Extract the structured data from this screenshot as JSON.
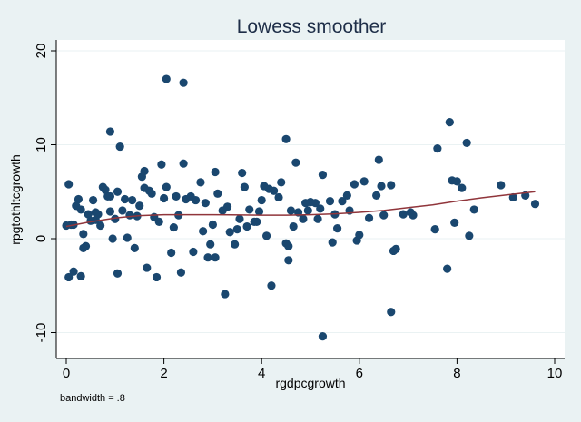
{
  "chart_data": {
    "type": "scatter",
    "title": "Lowess smoother",
    "xlabel": "rgdpcgrowth",
    "ylabel": "rpgtothltcgrowth",
    "note": "bandwidth = .8",
    "xlim": [
      -0.2,
      10.2
    ],
    "ylim": [
      -11.5,
      21
    ],
    "xticks": [
      0,
      2,
      4,
      6,
      8,
      10
    ],
    "yticks": [
      -10,
      0,
      10,
      20
    ],
    "grid": true,
    "colors": {
      "marker": "#1a476f",
      "line": "#90353b",
      "background": "#eaf2f3",
      "plot": "#ffffff",
      "text": "#1e2e48"
    },
    "points": [
      [
        2.05,
        17
      ],
      [
        2.4,
        16.6
      ],
      [
        0.9,
        11.4
      ],
      [
        1.1,
        9.8
      ],
      [
        4.5,
        10.6
      ],
      [
        7.6,
        9.6
      ],
      [
        7.85,
        12.4
      ],
      [
        8.2,
        10.2
      ],
      [
        5.25,
        -10.4
      ],
      [
        6.65,
        -7.8
      ],
      [
        3.25,
        -5.9
      ],
      [
        4.2,
        -5
      ],
      [
        7.8,
        -3.2
      ],
      [
        0.05,
        -4.1
      ],
      [
        0.15,
        -3.5
      ],
      [
        0.3,
        -4
      ],
      [
        1.05,
        -3.7
      ],
      [
        1.65,
        -3.1
      ],
      [
        1.85,
        -4.1
      ],
      [
        2.35,
        -3.6
      ],
      [
        2.9,
        -2
      ],
      [
        3.05,
        -2
      ],
      [
        4.55,
        -2.3
      ],
      [
        8.25,
        0.3
      ],
      [
        8.9,
        5.7
      ],
      [
        9.15,
        4.4
      ],
      [
        9.4,
        4.6
      ],
      [
        9.6,
        3.7
      ],
      [
        7.9,
        6.2
      ],
      [
        8.0,
        6.1
      ],
      [
        8.1,
        5.4
      ],
      [
        7.95,
        1.7
      ],
      [
        8.35,
        3.1
      ],
      [
        7.55,
        1
      ],
      [
        7.05,
        2.8
      ],
      [
        7.1,
        2.5
      ],
      [
        6.9,
        2.6
      ],
      [
        6.7,
        -1.3
      ],
      [
        6.75,
        -1.1
      ],
      [
        6.65,
        5.7
      ],
      [
        6.45,
        5.6
      ],
      [
        6.4,
        8.4
      ],
      [
        6.35,
        4.6
      ],
      [
        6.2,
        2.2
      ],
      [
        6.5,
        2.5
      ],
      [
        5.95,
        -0.2
      ],
      [
        5.8,
        3
      ],
      [
        5.9,
        5.8
      ],
      [
        5.75,
        4.6
      ],
      [
        5.65,
        4.0
      ],
      [
        5.5,
        2.6
      ],
      [
        5.45,
        -0.4
      ],
      [
        5.4,
        4.0
      ],
      [
        5.2,
        3.2
      ],
      [
        5.15,
        2.1
      ],
      [
        5.25,
        6.8
      ],
      [
        5.1,
        3.8
      ],
      [
        5.0,
        3.9
      ],
      [
        4.95,
        3.0
      ],
      [
        4.85,
        2.1
      ],
      [
        4.7,
        8.1
      ],
      [
        4.6,
        3.0
      ],
      [
        4.5,
        -0.5
      ],
      [
        4.55,
        -0.8
      ],
      [
        4.4,
        6.0
      ],
      [
        4.35,
        4.4
      ],
      [
        4.25,
        5.1
      ],
      [
        4.15,
        5.3
      ],
      [
        4.05,
        5.6
      ],
      [
        4.0,
        4.1
      ],
      [
        3.95,
        2.9
      ],
      [
        3.85,
        1.8
      ],
      [
        3.75,
        3.1
      ],
      [
        3.65,
        5.5
      ],
      [
        3.6,
        7.0
      ],
      [
        3.55,
        2.1
      ],
      [
        3.5,
        1.0
      ],
      [
        3.35,
        0.7
      ],
      [
        3.3,
        3.4
      ],
      [
        3.2,
        3.0
      ],
      [
        3.1,
        4.8
      ],
      [
        3.05,
        7.1
      ],
      [
        3.0,
        1.5
      ],
      [
        2.95,
        -0.6
      ],
      [
        2.85,
        3.8
      ],
      [
        2.75,
        6.0
      ],
      [
        2.65,
        4.1
      ],
      [
        2.55,
        4.5
      ],
      [
        2.45,
        4.2
      ],
      [
        2.4,
        8.0
      ],
      [
        2.3,
        2.5
      ],
      [
        2.25,
        4.5
      ],
      [
        2.2,
        1.2
      ],
      [
        2.15,
        -1.5
      ],
      [
        2.05,
        5.5
      ],
      [
        2.0,
        4.3
      ],
      [
        1.95,
        7.9
      ],
      [
        1.9,
        1.8
      ],
      [
        1.8,
        2.3
      ],
      [
        1.75,
        4.8
      ],
      [
        1.7,
        5.1
      ],
      [
        1.6,
        7.2
      ],
      [
        1.55,
        6.6
      ],
      [
        1.5,
        3.5
      ],
      [
        1.45,
        2.4
      ],
      [
        1.4,
        -1.0
      ],
      [
        1.3,
        2.5
      ],
      [
        1.25,
        0.1
      ],
      [
        1.2,
        4.2
      ],
      [
        1.15,
        3.0
      ],
      [
        1.05,
        5.0
      ],
      [
        1.0,
        2.1
      ],
      [
        0.95,
        0.0
      ],
      [
        0.9,
        2.9
      ],
      [
        0.85,
        4.5
      ],
      [
        0.8,
        5.2
      ],
      [
        0.75,
        5.5
      ],
      [
        0.7,
        1.4
      ],
      [
        0.65,
        2.6
      ],
      [
        0.6,
        2.8
      ],
      [
        0.55,
        4.1
      ],
      [
        0.5,
        1.9
      ],
      [
        0.45,
        2.6
      ],
      [
        0.4,
        -0.8
      ],
      [
        0.35,
        0.5
      ],
      [
        0.3,
        3.1
      ],
      [
        0.25,
        4.2
      ],
      [
        0.2,
        3.5
      ],
      [
        0.15,
        1.5
      ],
      [
        0.1,
        1.5
      ],
      [
        0.05,
        5.8
      ],
      [
        0.0,
        1.4
      ],
      [
        0.35,
        -1.0
      ],
      [
        0.6,
        2.0
      ],
      [
        0.9,
        4.5
      ],
      [
        1.35,
        4.1
      ],
      [
        1.6,
        5.4
      ],
      [
        2.6,
        -1.4
      ],
      [
        2.8,
        0.8
      ],
      [
        3.45,
        -0.6
      ],
      [
        3.7,
        1.3
      ],
      [
        3.9,
        1.8
      ],
      [
        4.1,
        0.3
      ],
      [
        4.65,
        1.3
      ],
      [
        5.55,
        1.1
      ],
      [
        6.0,
        0.4
      ],
      [
        6.1,
        6.1
      ],
      [
        4.9,
        3.8
      ],
      [
        4.75,
        2.8
      ]
    ],
    "lowess": [
      [
        0,
        1.3
      ],
      [
        0.5,
        1.8
      ],
      [
        1,
        2.2
      ],
      [
        1.5,
        2.45
      ],
      [
        2,
        2.55
      ],
      [
        3,
        2.55
      ],
      [
        4,
        2.5
      ],
      [
        4.5,
        2.5
      ],
      [
        5,
        2.55
      ],
      [
        5.5,
        2.65
      ],
      [
        6,
        2.8
      ],
      [
        6.5,
        3.0
      ],
      [
        7,
        3.3
      ],
      [
        7.5,
        3.6
      ],
      [
        8,
        4.0
      ],
      [
        8.5,
        4.35
      ],
      [
        9,
        4.65
      ],
      [
        9.6,
        5.0
      ]
    ]
  }
}
